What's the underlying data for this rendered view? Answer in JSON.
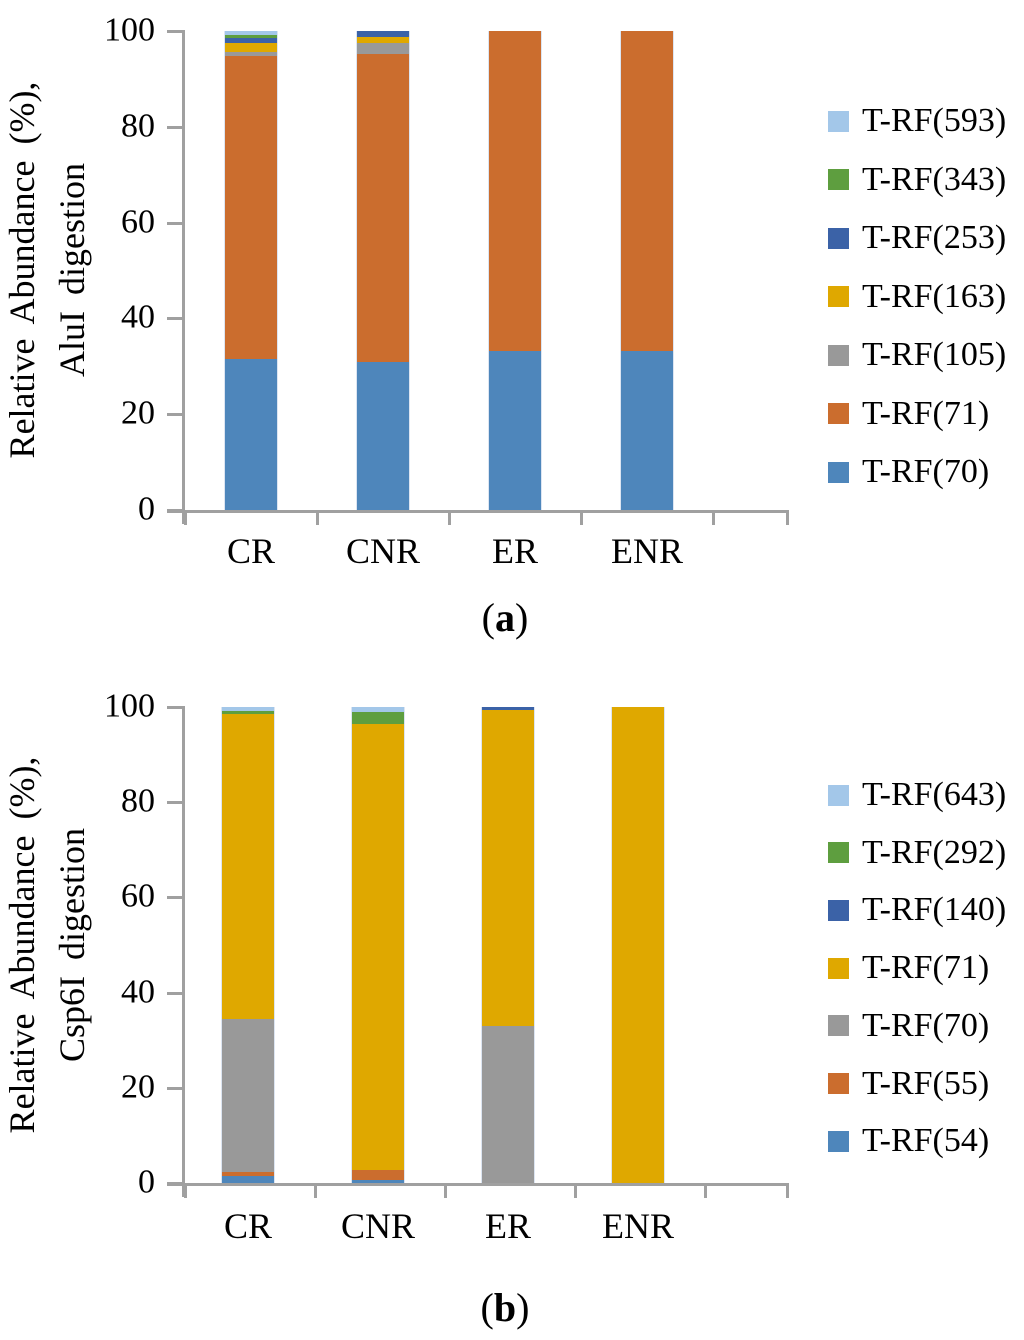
{
  "chart_data": [
    {
      "id": "a",
      "type": "bar",
      "stacked": true,
      "caption": {
        "open": "(",
        "letter": "a",
        "close": ")"
      },
      "ylabel_line1": "Relative Abundance (%),",
      "ylabel_line2": "AluI digestion",
      "categories": [
        "CR",
        "CNR",
        "ER",
        "ENR"
      ],
      "ylim": [
        0,
        100
      ],
      "yticks": [
        "0",
        "20",
        "40",
        "60",
        "80",
        "100"
      ],
      "grid": false,
      "legend_position": "right",
      "legend_order": "top-of-stack-first",
      "series": [
        {
          "name": "T-RF(70)",
          "color": "#4e86bb",
          "values": [
            31.6,
            31.0,
            33.1,
            33.1
          ]
        },
        {
          "name": "T-RF(71)",
          "color": "#cb6d2e",
          "values": [
            63.2,
            64.2,
            66.9,
            66.9
          ]
        },
        {
          "name": "T-RF(105)",
          "color": "#999999",
          "values": [
            0.9,
            2.3,
            0,
            0
          ]
        },
        {
          "name": "T-RF(163)",
          "color": "#dfa800",
          "values": [
            1.7,
            1.3,
            0,
            0
          ]
        },
        {
          "name": "T-RF(253)",
          "color": "#3b62a7",
          "values": [
            1.2,
            1.2,
            0,
            0
          ]
        },
        {
          "name": "T-RF(343)",
          "color": "#5e9e3f",
          "values": [
            0.6,
            0,
            0,
            0
          ]
        },
        {
          "name": "T-RF(593)",
          "color": "#a3c7e9",
          "values": [
            0.8,
            0,
            0,
            0
          ]
        }
      ]
    },
    {
      "id": "b",
      "type": "bar",
      "stacked": true,
      "caption": {
        "open": "(",
        "letter": "b",
        "close": ")"
      },
      "ylabel_line1": "Relative Abundance (%),",
      "ylabel_line2": "Csp6I digestion",
      "categories": [
        "CR",
        "CNR",
        "ER",
        "ENR"
      ],
      "ylim": [
        0,
        100
      ],
      "yticks": [
        "0",
        "20",
        "40",
        "60",
        "80",
        "100"
      ],
      "grid": false,
      "legend_position": "right",
      "legend_order": "top-of-stack-first",
      "series": [
        {
          "name": "T-RF(54)",
          "color": "#4e86bb",
          "values": [
            1.5,
            0.6,
            0,
            0
          ]
        },
        {
          "name": "T-RF(55)",
          "color": "#cb6d2e",
          "values": [
            0.8,
            2.1,
            0,
            0
          ]
        },
        {
          "name": "T-RF(70)",
          "color": "#999999",
          "values": [
            32.2,
            0,
            33.0,
            0
          ]
        },
        {
          "name": "T-RF(71)",
          "color": "#dfa800",
          "values": [
            64.1,
            93.8,
            66.4,
            100
          ]
        },
        {
          "name": "T-RF(140)",
          "color": "#3b62a7",
          "values": [
            0,
            0,
            0.6,
            0
          ]
        },
        {
          "name": "T-RF(292)",
          "color": "#5e9e3f",
          "values": [
            0.6,
            2.5,
            0,
            0
          ]
        },
        {
          "name": "T-RF(643)",
          "color": "#a3c7e9",
          "values": [
            0.8,
            1.0,
            0,
            0
          ]
        }
      ]
    }
  ],
  "style": {
    "axis_color": "#a0a0a0",
    "text_color": "#000000",
    "background": "#ffffff"
  }
}
